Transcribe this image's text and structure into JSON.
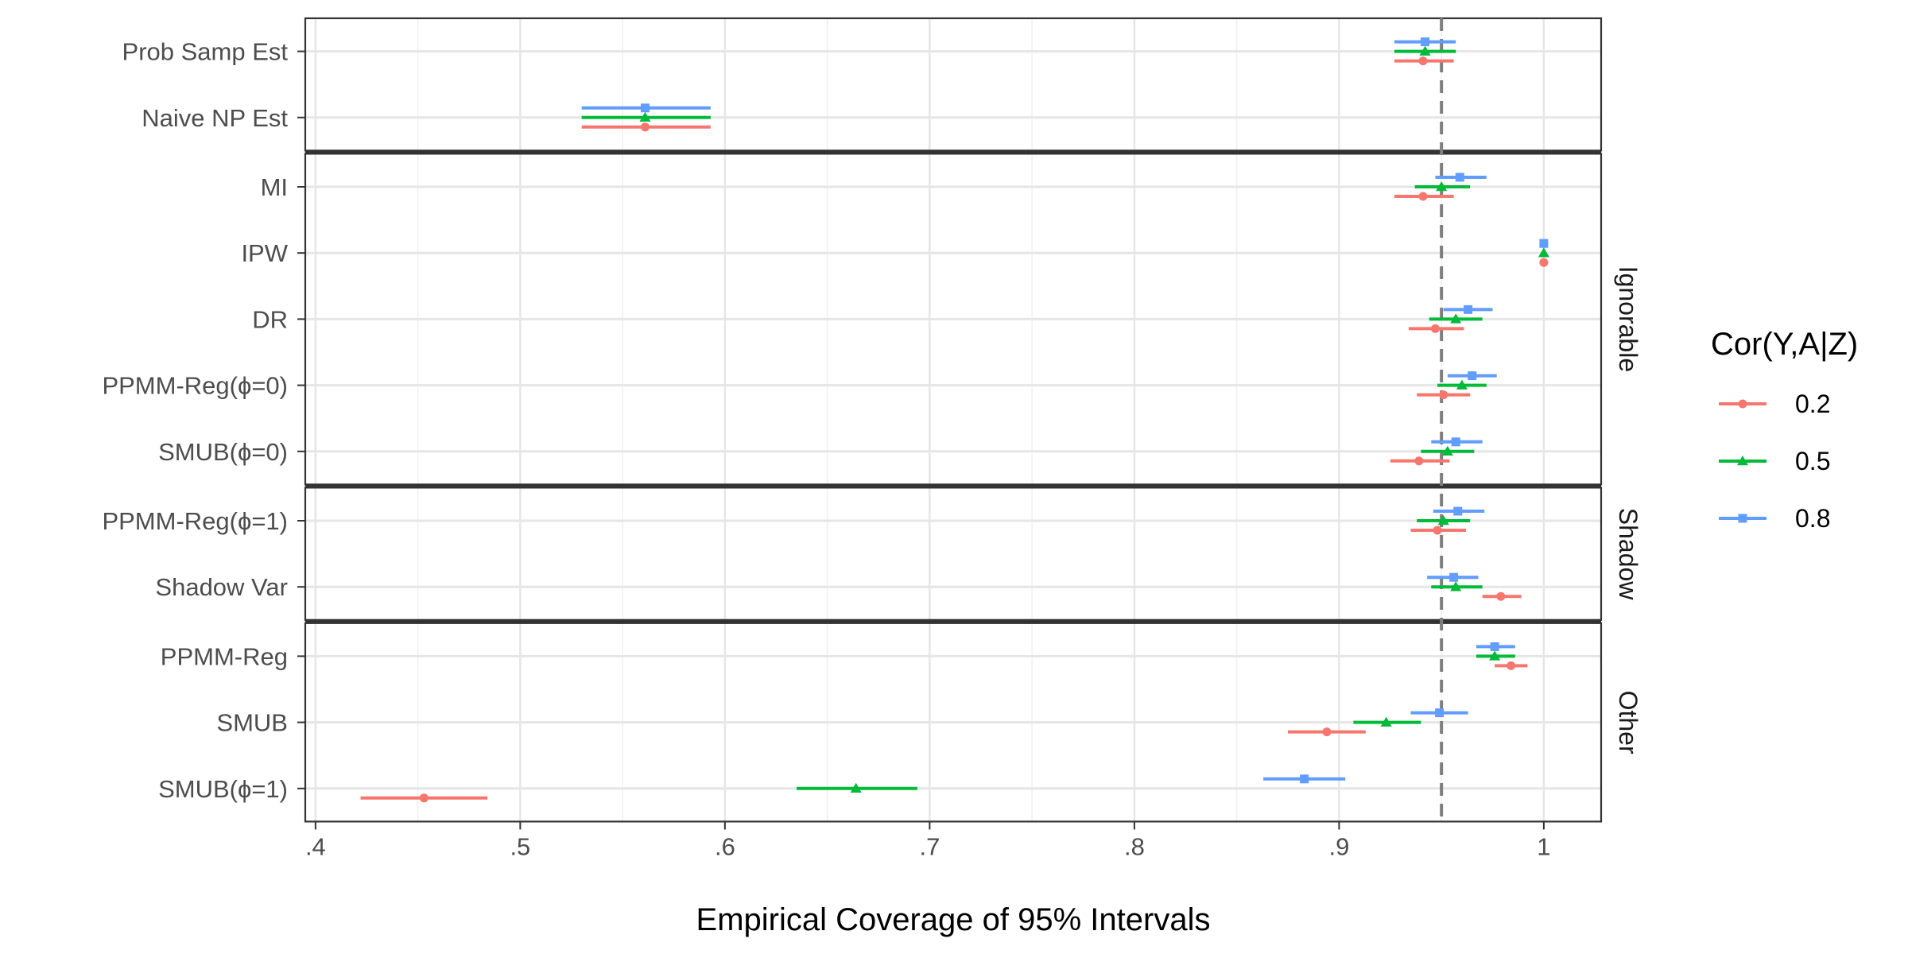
{
  "chart_data": {
    "type": "forest",
    "xlabel": "Empirical Coverage of 95% Intervals",
    "xlim": [
      0.395,
      1.028
    ],
    "xticks": [
      0.4,
      0.5,
      0.6,
      0.7,
      0.8,
      0.9,
      1.0
    ],
    "xtick_labels": [
      ".4",
      ".5",
      ".6",
      ".7",
      ".8",
      ".9",
      "1"
    ],
    "reference_line": 0.95,
    "grid": true,
    "legend": {
      "title": "Cor(Y,A|Z)",
      "position": "right",
      "entries": [
        {
          "label": "0.2",
          "color": "#F8766D",
          "shape": "circle"
        },
        {
          "label": "0.5",
          "color": "#00BA38",
          "shape": "triangle"
        },
        {
          "label": "0.8",
          "color": "#619CFF",
          "shape": "square"
        }
      ]
    },
    "panels": [
      {
        "strip": "",
        "rows": [
          {
            "label": "Prob Samp Est",
            "estimates": [
              {
                "series": "0.2",
                "point": 0.941,
                "lo": 0.927,
                "hi": 0.956
              },
              {
                "series": "0.5",
                "point": 0.942,
                "lo": 0.927,
                "hi": 0.957
              },
              {
                "series": "0.8",
                "point": 0.942,
                "lo": 0.927,
                "hi": 0.957
              }
            ]
          },
          {
            "label": "Naive NP Est",
            "estimates": [
              {
                "series": "0.2",
                "point": 0.561,
                "lo": 0.53,
                "hi": 0.593
              },
              {
                "series": "0.5",
                "point": 0.561,
                "lo": 0.53,
                "hi": 0.593
              },
              {
                "series": "0.8",
                "point": 0.561,
                "lo": 0.53,
                "hi": 0.593
              }
            ]
          }
        ]
      },
      {
        "strip": "Ignorable",
        "rows": [
          {
            "label": "MI",
            "estimates": [
              {
                "series": "0.2",
                "point": 0.941,
                "lo": 0.927,
                "hi": 0.956
              },
              {
                "series": "0.5",
                "point": 0.95,
                "lo": 0.937,
                "hi": 0.964
              },
              {
                "series": "0.8",
                "point": 0.959,
                "lo": 0.947,
                "hi": 0.972
              }
            ]
          },
          {
            "label": "IPW",
            "estimates": [
              {
                "series": "0.2",
                "point": 1.0,
                "lo": 1.0,
                "hi": 1.0
              },
              {
                "series": "0.5",
                "point": 1.0,
                "lo": 1.0,
                "hi": 1.0
              },
              {
                "series": "0.8",
                "point": 1.0,
                "lo": 1.0,
                "hi": 1.0
              }
            ]
          },
          {
            "label": "DR",
            "estimates": [
              {
                "series": "0.2",
                "point": 0.947,
                "lo": 0.934,
                "hi": 0.961
              },
              {
                "series": "0.5",
                "point": 0.957,
                "lo": 0.944,
                "hi": 0.97
              },
              {
                "series": "0.8",
                "point": 0.963,
                "lo": 0.951,
                "hi": 0.975
              }
            ]
          },
          {
            "label": "PPMM-Reg(ϕ=0)",
            "estimates": [
              {
                "series": "0.2",
                "point": 0.951,
                "lo": 0.938,
                "hi": 0.964
              },
              {
                "series": "0.5",
                "point": 0.96,
                "lo": 0.948,
                "hi": 0.972
              },
              {
                "series": "0.8",
                "point": 0.965,
                "lo": 0.953,
                "hi": 0.977
              }
            ]
          },
          {
            "label": "SMUB(ϕ=0)",
            "estimates": [
              {
                "series": "0.2",
                "point": 0.939,
                "lo": 0.925,
                "hi": 0.954
              },
              {
                "series": "0.5",
                "point": 0.953,
                "lo": 0.94,
                "hi": 0.966
              },
              {
                "series": "0.8",
                "point": 0.957,
                "lo": 0.945,
                "hi": 0.97
              }
            ]
          }
        ]
      },
      {
        "strip": "Shadow",
        "rows": [
          {
            "label": "PPMM-Reg(ϕ=1)",
            "estimates": [
              {
                "series": "0.2",
                "point": 0.948,
                "lo": 0.935,
                "hi": 0.962
              },
              {
                "series": "0.5",
                "point": 0.951,
                "lo": 0.938,
                "hi": 0.964
              },
              {
                "series": "0.8",
                "point": 0.958,
                "lo": 0.946,
                "hi": 0.971
              }
            ]
          },
          {
            "label": "Shadow Var",
            "estimates": [
              {
                "series": "0.2",
                "point": 0.979,
                "lo": 0.97,
                "hi": 0.989
              },
              {
                "series": "0.5",
                "point": 0.957,
                "lo": 0.945,
                "hi": 0.97
              },
              {
                "series": "0.8",
                "point": 0.956,
                "lo": 0.943,
                "hi": 0.968
              }
            ]
          }
        ]
      },
      {
        "strip": "Other",
        "rows": [
          {
            "label": "PPMM-Reg",
            "estimates": [
              {
                "series": "0.2",
                "point": 0.984,
                "lo": 0.976,
                "hi": 0.992
              },
              {
                "series": "0.5",
                "point": 0.976,
                "lo": 0.967,
                "hi": 0.986
              },
              {
                "series": "0.8",
                "point": 0.976,
                "lo": 0.967,
                "hi": 0.986
              }
            ]
          },
          {
            "label": "SMUB",
            "estimates": [
              {
                "series": "0.2",
                "point": 0.894,
                "lo": 0.875,
                "hi": 0.913
              },
              {
                "series": "0.5",
                "point": 0.923,
                "lo": 0.907,
                "hi": 0.94
              },
              {
                "series": "0.8",
                "point": 0.949,
                "lo": 0.935,
                "hi": 0.963
              }
            ]
          },
          {
            "label": "SMUB(ϕ=1)",
            "estimates": [
              {
                "series": "0.2",
                "point": 0.453,
                "lo": 0.422,
                "hi": 0.484
              },
              {
                "series": "0.5",
                "point": 0.664,
                "lo": 0.635,
                "hi": 0.694
              },
              {
                "series": "0.8",
                "point": 0.883,
                "lo": 0.863,
                "hi": 0.903
              }
            ]
          }
        ]
      }
    ]
  }
}
